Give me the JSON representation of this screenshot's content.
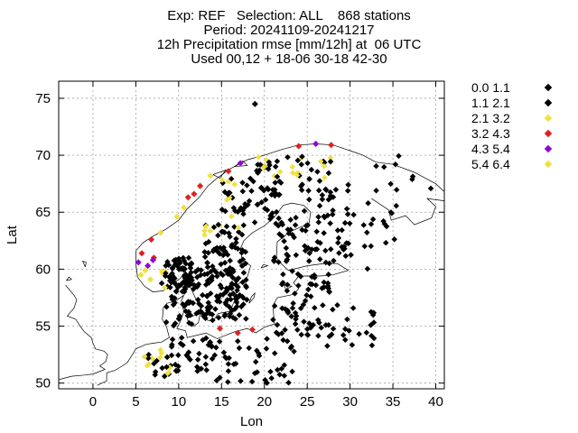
{
  "header": {
    "line1": "Exp: REF   Selection: ALL    868 stations",
    "line2": "Period: 20241109-20241217",
    "line3": "12h Precipitation rmse [mm/12h] at  06 UTC",
    "line4": "Used 00,12 + 18-06 30-18 42-30"
  },
  "chart_data": {
    "type": "scatter",
    "title": "12h Precipitation rmse [mm/12h] at  06 UTC",
    "xlabel": "Lon",
    "ylabel": "Lat",
    "xlim": [
      -4,
      41
    ],
    "ylim": [
      49.5,
      76.5
    ],
    "xticks": [
      0,
      5,
      10,
      15,
      20,
      25,
      30,
      35,
      40
    ],
    "yticks": [
      50,
      55,
      60,
      65,
      70,
      75
    ],
    "grid": true,
    "legend_position": "right",
    "legend": [
      {
        "label": "0.0 1.1",
        "color": "#000000"
      },
      {
        "label": "1.1 2.1",
        "color": "#000000"
      },
      {
        "label": "2.1 3.2",
        "color": "#f0e040"
      },
      {
        "label": "3.2 4.3",
        "color": "#e02020"
      },
      {
        "label": "4.3 5.4",
        "color": "#9400d3"
      },
      {
        "label": "5.4 6.4",
        "color": "#f0e040"
      }
    ],
    "highlight_points": [
      {
        "lon": 18.9,
        "lat": 74.5,
        "bin": 0
      },
      {
        "lon": 26.0,
        "lat": 71.0,
        "bin": 4
      },
      {
        "lon": 24.0,
        "lat": 70.8,
        "bin": 3
      },
      {
        "lon": 27.8,
        "lat": 70.9,
        "bin": 3
      },
      {
        "lon": 17.2,
        "lat": 69.3,
        "bin": 4
      },
      {
        "lon": 15.8,
        "lat": 68.6,
        "bin": 3
      },
      {
        "lon": 13.7,
        "lat": 68.2,
        "bin": 2
      },
      {
        "lon": 12.5,
        "lat": 67.3,
        "bin": 3
      },
      {
        "lon": 11.8,
        "lat": 66.6,
        "bin": 3
      },
      {
        "lon": 11.1,
        "lat": 66.3,
        "bin": 3
      },
      {
        "lon": 10.6,
        "lat": 65.4,
        "bin": 2
      },
      {
        "lon": 9.8,
        "lat": 64.6,
        "bin": 2
      },
      {
        "lon": 7.9,
        "lat": 63.2,
        "bin": 2
      },
      {
        "lon": 6.8,
        "lat": 62.6,
        "bin": 3
      },
      {
        "lon": 5.7,
        "lat": 61.4,
        "bin": 3
      },
      {
        "lon": 5.3,
        "lat": 60.6,
        "bin": 4
      },
      {
        "lon": 6.4,
        "lat": 60.3,
        "bin": 4
      },
      {
        "lon": 7.1,
        "lat": 61.0,
        "bin": 3
      },
      {
        "lon": 5.6,
        "lat": 59.5,
        "bin": 2
      },
      {
        "lon": 6.7,
        "lat": 59.1,
        "bin": 5
      },
      {
        "lon": 7.0,
        "lat": 60.8,
        "bin": 4
      },
      {
        "lon": 6.1,
        "lat": 59.9,
        "bin": 5
      },
      {
        "lon": 14.8,
        "lat": 54.8,
        "bin": 3
      },
      {
        "lon": 16.9,
        "lat": 54.4,
        "bin": 3
      },
      {
        "lon": 18.6,
        "lat": 54.7,
        "bin": 3
      }
    ]
  }
}
